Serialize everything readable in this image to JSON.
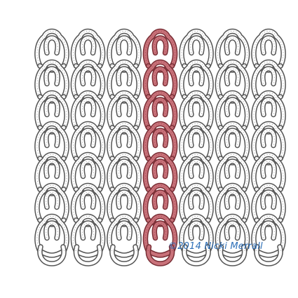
{
  "illustration": {
    "subject": "knitted-stitch-fabric",
    "highlighted_column": 4,
    "columns": 7,
    "rows": 7,
    "colors": {
      "yarn": "#ffffff",
      "yarn_outline": "#555555",
      "highlight": "#c9727a",
      "highlight_outline": "#7a2f36"
    }
  },
  "copyright": {
    "text": "©2014 Nicki Merrall",
    "color": "#2d6fb8"
  }
}
